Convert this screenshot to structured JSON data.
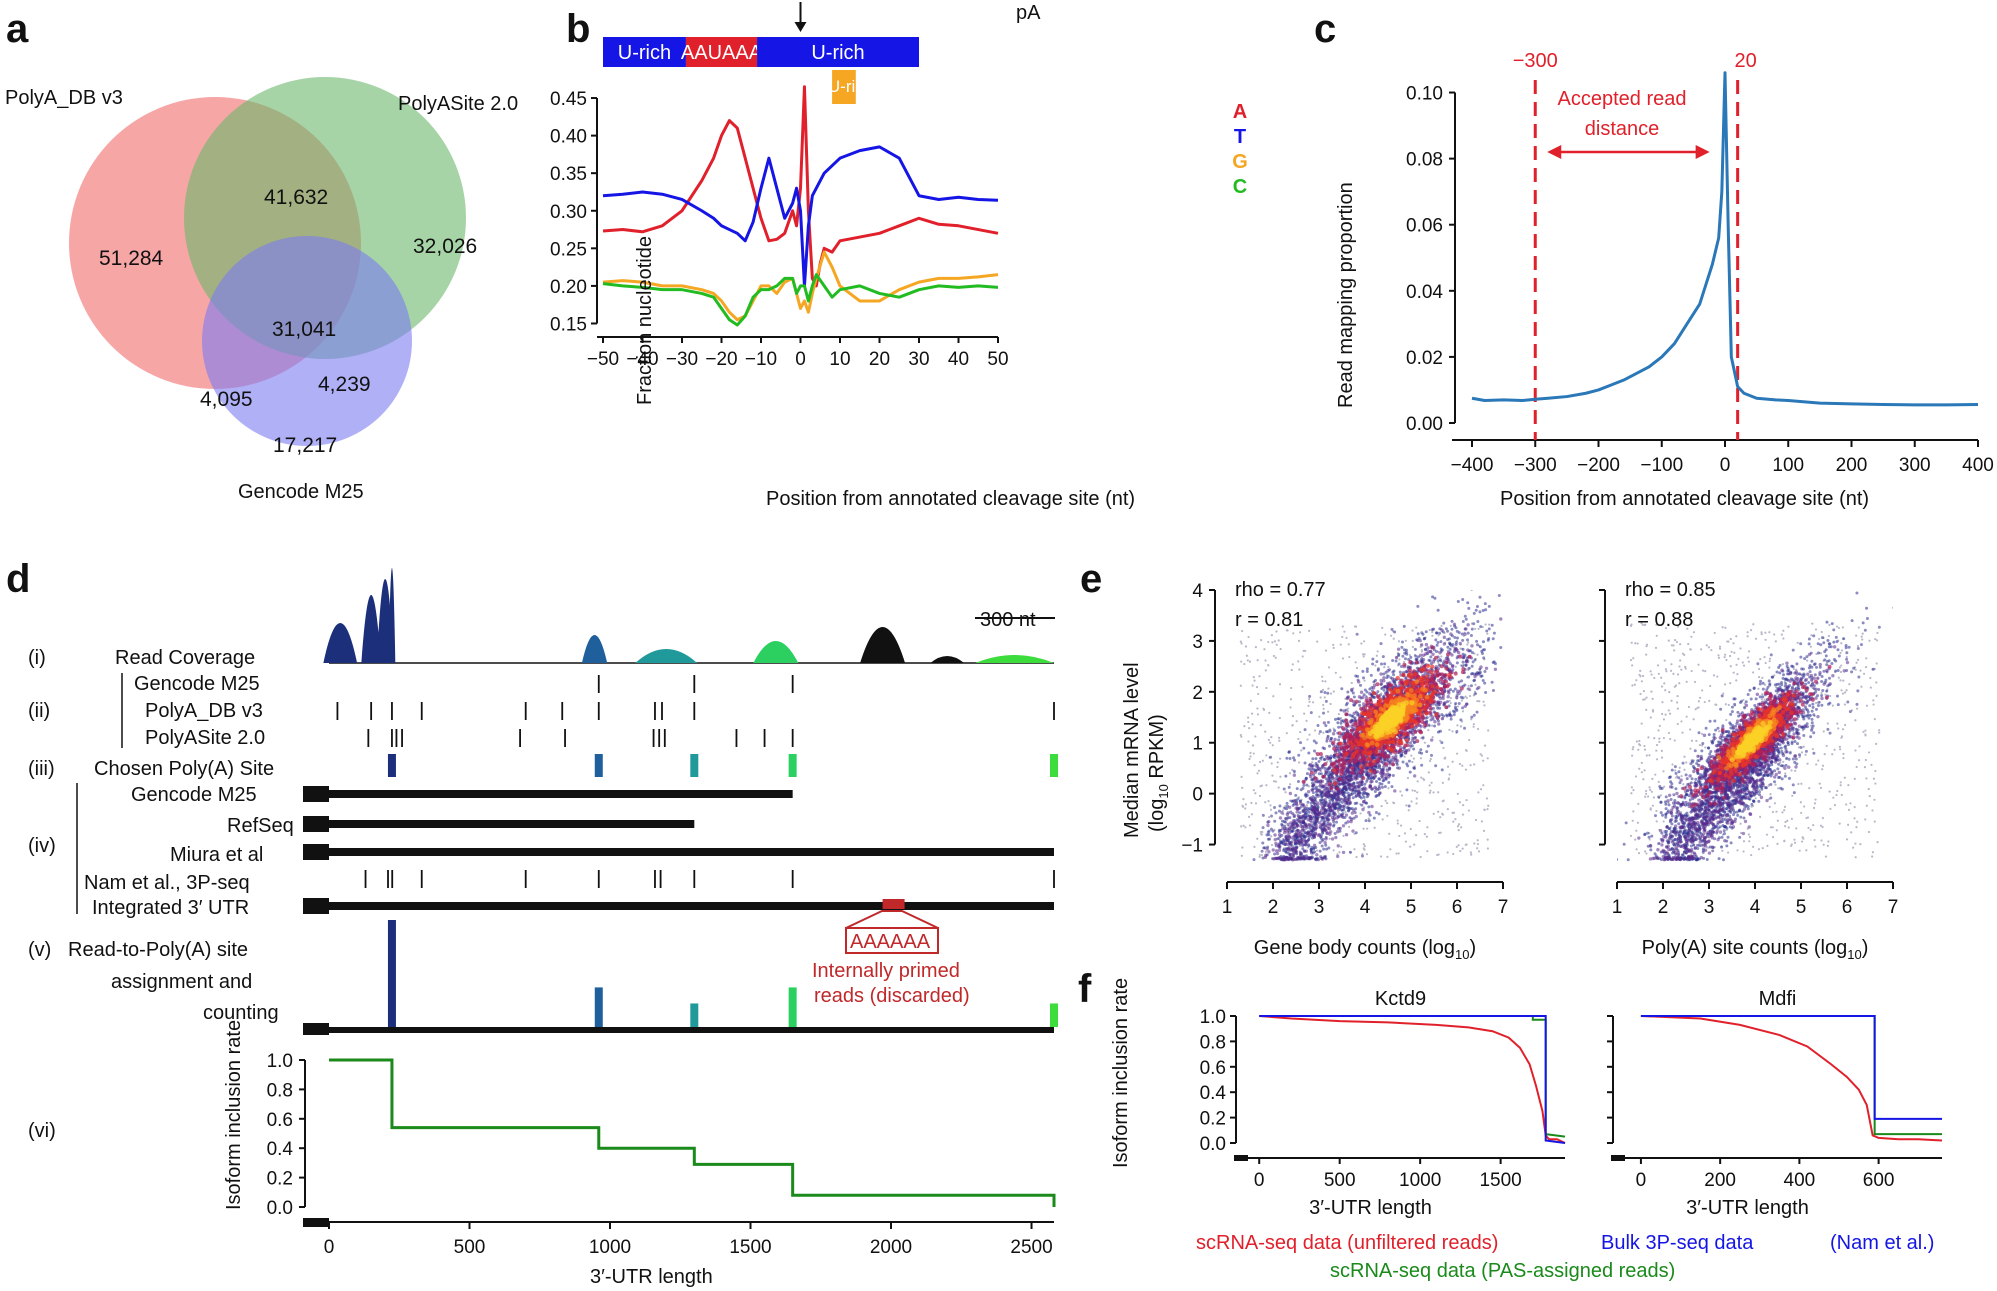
{
  "panel_labels": [
    "a",
    "b",
    "c",
    "d",
    "e",
    "f"
  ],
  "chart_data": [
    {
      "panel": "a",
      "type": "venn",
      "sets": [
        {
          "name": "PolyA_DB v3",
          "color": "#f26b6b"
        },
        {
          "name": "PolyASite 2.0",
          "color": "#6bb86b"
        },
        {
          "name": "Gencode M25",
          "color": "#7b7bf2"
        }
      ],
      "regions": [
        {
          "label": "51,284",
          "sets": [
            "PolyA_DB v3"
          ]
        },
        {
          "label": "32,026",
          "sets": [
            "PolyASite 2.0"
          ]
        },
        {
          "label": "17,217",
          "sets": [
            "Gencode M25"
          ]
        },
        {
          "label": "41,632",
          "sets": [
            "PolyA_DB v3",
            "PolyASite 2.0"
          ]
        },
        {
          "label": "4,095",
          "sets": [
            "PolyA_DB v3",
            "Gencode M25"
          ]
        },
        {
          "label": "4,239",
          "sets": [
            "PolyASite 2.0",
            "Gencode M25"
          ]
        },
        {
          "label": "31,041",
          "sets": [
            "PolyA_DB v3",
            "PolyASite 2.0",
            "Gencode M25"
          ]
        }
      ]
    },
    {
      "panel": "b",
      "type": "line",
      "xlabel": "Position from annotated cleavage site (nt)",
      "ylabel": "Fraction nucleotide",
      "xlim": [
        -50,
        50
      ],
      "ylim": [
        0.14,
        0.47
      ],
      "xticks": [
        -50,
        -40,
        -30,
        -20,
        -10,
        0,
        10,
        20,
        30,
        40,
        50
      ],
      "yticks": [
        "0.15",
        "0.20",
        "0.25",
        "0.30",
        "0.35",
        "0.40",
        "0.45"
      ],
      "top_annotation": {
        "marker": "pA",
        "segments": [
          {
            "label": "U-rich",
            "from": -50,
            "to": -29,
            "color": "#1515e6"
          },
          {
            "label": "AAUAAA",
            "from": -29,
            "to": -11,
            "color": "#e0202a"
          },
          {
            "label": "U-rich",
            "from": -11,
            "to": 30,
            "color": "#1515e6"
          }
        ],
        "box": {
          "label": "GU-rich",
          "from": 8,
          "to": 14,
          "color": "#f5a623"
        }
      },
      "series": [
        {
          "name": "A",
          "color": "#e0202a",
          "x": [
            -50,
            -45,
            -40,
            -35,
            -30,
            -25,
            -22,
            -20,
            -18,
            -16,
            -14,
            -12,
            -10,
            -8,
            -6,
            -4,
            -2,
            -1,
            0,
            1,
            2,
            3,
            4,
            5,
            6,
            8,
            10,
            15,
            20,
            25,
            30,
            35,
            40,
            45,
            50
          ],
          "y": [
            0.273,
            0.275,
            0.272,
            0.28,
            0.3,
            0.34,
            0.37,
            0.4,
            0.42,
            0.41,
            0.37,
            0.33,
            0.29,
            0.26,
            0.262,
            0.27,
            0.3,
            0.28,
            0.33,
            0.465,
            0.3,
            0.21,
            0.2,
            0.23,
            0.25,
            0.245,
            0.26,
            0.265,
            0.27,
            0.28,
            0.29,
            0.282,
            0.28,
            0.275,
            0.27
          ]
        },
        {
          "name": "T",
          "color": "#1515e6",
          "x": [
            -50,
            -45,
            -40,
            -35,
            -30,
            -25,
            -22,
            -20,
            -18,
            -16,
            -14,
            -12,
            -10,
            -8,
            -6,
            -4,
            -2,
            -1,
            0,
            1,
            2,
            3,
            4,
            6,
            8,
            10,
            15,
            20,
            25,
            30,
            35,
            40,
            45,
            50
          ],
          "y": [
            0.32,
            0.322,
            0.325,
            0.322,
            0.315,
            0.3,
            0.29,
            0.28,
            0.275,
            0.27,
            0.26,
            0.285,
            0.33,
            0.37,
            0.33,
            0.29,
            0.31,
            0.33,
            0.3,
            0.2,
            0.28,
            0.32,
            0.33,
            0.35,
            0.36,
            0.37,
            0.38,
            0.385,
            0.37,
            0.32,
            0.315,
            0.318,
            0.315,
            0.314
          ]
        },
        {
          "name": "G",
          "color": "#f5a623",
          "x": [
            -50,
            -45,
            -40,
            -35,
            -30,
            -25,
            -22,
            -20,
            -18,
            -16,
            -14,
            -12,
            -10,
            -8,
            -6,
            -4,
            -2,
            -1,
            0,
            1,
            2,
            3,
            4,
            6,
            8,
            10,
            15,
            20,
            25,
            30,
            35,
            40,
            45,
            50
          ],
          "y": [
            0.205,
            0.207,
            0.205,
            0.2,
            0.2,
            0.195,
            0.19,
            0.18,
            0.165,
            0.155,
            0.16,
            0.18,
            0.2,
            0.2,
            0.19,
            0.205,
            0.21,
            0.19,
            0.17,
            0.18,
            0.165,
            0.19,
            0.21,
            0.245,
            0.225,
            0.2,
            0.18,
            0.18,
            0.195,
            0.205,
            0.21,
            0.21,
            0.212,
            0.215
          ]
        },
        {
          "name": "C",
          "color": "#22bb22",
          "x": [
            -50,
            -45,
            -40,
            -35,
            -30,
            -25,
            -22,
            -20,
            -18,
            -16,
            -14,
            -12,
            -10,
            -8,
            -6,
            -4,
            -2,
            -1,
            0,
            1,
            2,
            3,
            4,
            6,
            8,
            10,
            15,
            20,
            25,
            30,
            35,
            40,
            45,
            50
          ],
          "y": [
            0.203,
            0.2,
            0.198,
            0.195,
            0.195,
            0.19,
            0.185,
            0.17,
            0.155,
            0.148,
            0.16,
            0.185,
            0.195,
            0.195,
            0.2,
            0.21,
            0.21,
            0.19,
            0.2,
            0.2,
            0.18,
            0.2,
            0.215,
            0.2,
            0.185,
            0.195,
            0.2,
            0.19,
            0.185,
            0.195,
            0.2,
            0.198,
            0.2,
            0.198
          ]
        }
      ]
    },
    {
      "panel": "c",
      "type": "line",
      "xlabel": "Position from annotated cleavage site (nt)",
      "ylabel": "Read mapping proportion",
      "xlim": [
        -400,
        400
      ],
      "ylim": [
        0,
        0.105
      ],
      "xticks": [
        "−400",
        "−300",
        "−200",
        "−100",
        "0",
        "100",
        "200",
        "300",
        "400"
      ],
      "yticks": [
        "0.00",
        "0.02",
        "0.04",
        "0.06",
        "0.08",
        "0.10"
      ],
      "annotations": {
        "left_line": -300,
        "right_line": 20,
        "left_label": "−300",
        "right_label": "20",
        "text_line1": "Accepted read",
        "text_line2": "distance",
        "color": "#e0202a"
      },
      "series": [
        {
          "name": "Read mapping",
          "color": "#2a78b8",
          "x": [
            -400,
            -380,
            -350,
            -320,
            -300,
            -280,
            -250,
            -220,
            -200,
            -180,
            -160,
            -140,
            -120,
            -100,
            -80,
            -60,
            -40,
            -30,
            -20,
            -10,
            -5,
            0,
            5,
            10,
            20,
            30,
            50,
            80,
            100,
            150,
            200,
            250,
            300,
            350,
            400
          ],
          "y": [
            0.0075,
            0.0068,
            0.007,
            0.0068,
            0.0072,
            0.0075,
            0.008,
            0.009,
            0.01,
            0.0115,
            0.013,
            0.015,
            0.017,
            0.02,
            0.024,
            0.03,
            0.036,
            0.042,
            0.048,
            0.056,
            0.07,
            0.106,
            0.06,
            0.02,
            0.011,
            0.009,
            0.0075,
            0.007,
            0.0068,
            0.006,
            0.0058,
            0.0056,
            0.0055,
            0.0055,
            0.0056
          ]
        }
      ]
    },
    {
      "panel": "d",
      "type": "schematic",
      "scalebar": "300 nt",
      "rows": [
        {
          "id": "(i)",
          "label": "Read Coverage"
        },
        {
          "id": "(ii)",
          "labels": [
            "Gencode M25",
            "PolyA_DB v3",
            "PolyASite 2.0"
          ]
        },
        {
          "id": "(iii)",
          "label": "Chosen Poly(A) Site"
        },
        {
          "id": "(iv)",
          "labels": [
            "Gencode M25",
            "RefSeq",
            "Miura et al",
            "Nam et al., 3P-seq",
            "Integrated 3′ UTR"
          ]
        },
        {
          "id": "(v)",
          "labels": [
            "Read-to-Poly(A) site",
            "assignment and",
            "counting"
          ]
        },
        {
          "id": "(vi)",
          "label": ""
        }
      ],
      "sites": [
        224,
        960,
        1300,
        1650,
        2580
      ],
      "site_colors": [
        "#1c2f7a",
        "#1f5f9c",
        "#20999a",
        "#2bd060",
        "#3bdc3b"
      ],
      "counts": [
        1.0,
        0.37,
        0.22,
        0.37,
        0.22
      ],
      "internal_priming": {
        "motif": "AAAAAA",
        "label_line1": "Internally primed",
        "label_line2": "reads (discarded)",
        "color": "#c0282a"
      },
      "step": {
        "xlabel": "3′-UTR length",
        "ylabel": "Isoform inclusion rate",
        "xlim": [
          -60,
          2600
        ],
        "ylim": [
          0,
          1
        ],
        "xticks": [
          0,
          500,
          1000,
          1500,
          2000,
          2500
        ],
        "yticks": [
          "0.0",
          "0.2",
          "0.4",
          "0.6",
          "0.8",
          "1.0"
        ],
        "x": [
          0,
          224,
          960,
          1300,
          1650,
          2580
        ],
        "y": [
          1.0,
          0.54,
          0.4,
          0.29,
          0.08,
          0.0
        ]
      }
    },
    {
      "panel": "e",
      "type": "scatter",
      "ylabel_line1": "Median mRNA level",
      "ylabel_line2": "(log",
      "ylabel_sub": "10",
      "ylabel_end": " RPKM)",
      "ylim": [
        -1.5,
        4
      ],
      "yticks": [
        "−1",
        "0",
        "1",
        "2",
        "3",
        "4"
      ],
      "plots": [
        {
          "xlabel": "Gene body counts (log",
          "xlabel_sub": "10",
          "xlabel_end": ")",
          "xlim": [
            1,
            7
          ],
          "xticks": [
            "1",
            "2",
            "3",
            "4",
            "5",
            "6",
            "7"
          ],
          "stat1": "rho = 0.77",
          "stat2": "r = 0.81",
          "center": [
            4.6,
            1.5
          ],
          "spread": [
            0.75,
            0.65
          ],
          "corr": 0.75
        },
        {
          "xlabel": "Poly(A) site counts (log",
          "xlabel_sub": "10",
          "xlabel_end": ")",
          "xlim": [
            1,
            7
          ],
          "xticks": [
            "1",
            "2",
            "3",
            "4",
            "5",
            "6",
            "7"
          ],
          "stat1": "rho = 0.85",
          "stat2": "r = 0.88",
          "center": [
            3.95,
            1.05
          ],
          "spread": [
            0.65,
            0.6
          ],
          "corr": 0.85
        }
      ]
    },
    {
      "panel": "f",
      "type": "line",
      "ylabel": "Isoform inclusion rate",
      "yticks": [
        "0.0",
        "0.2",
        "0.4",
        "0.6",
        "0.8",
        "1.0"
      ],
      "legend": [
        {
          "name": "scRNA-seq data (unfiltered reads)",
          "color": "#e0202a"
        },
        {
          "name": "Bulk 3P-seq data",
          "color": "#1515e6"
        },
        {
          "name": "(Nam et al.)",
          "color": "#1515e6"
        },
        {
          "name": "scRNA-seq data (PAS-assigned reads)",
          "color": "#1a8a1a"
        }
      ],
      "plots": [
        {
          "title": "Kctd9",
          "xlabel": "3′-UTR length",
          "xlim": [
            -20,
            1900
          ],
          "xticks": [
            0,
            500,
            1000,
            1500
          ],
          "red_x": [
            0,
            200,
            500,
            800,
            1100,
            1300,
            1450,
            1550,
            1620,
            1680,
            1720,
            1760,
            1780,
            1800,
            1850,
            1900
          ],
          "red_y": [
            1.0,
            0.98,
            0.96,
            0.95,
            0.93,
            0.91,
            0.88,
            0.83,
            0.75,
            0.62,
            0.45,
            0.25,
            0.06,
            0.03,
            0.03,
            0.0
          ],
          "blue_x": [
            0,
            1780,
            1780,
            1900
          ],
          "blue_y": [
            1.0,
            1.0,
            0.02,
            0.0
          ],
          "green_x": [
            0,
            1700,
            1700,
            1780,
            1780,
            1900
          ],
          "green_y": [
            1.0,
            1.0,
            0.97,
            0.97,
            0.07,
            0.05
          ]
        },
        {
          "title": "Mdfi",
          "xlabel": "3′-UTR length",
          "xlim": [
            -20,
            760
          ],
          "xticks": [
            0,
            200,
            400,
            600
          ],
          "red_x": [
            0,
            150,
            250,
            350,
            420,
            480,
            520,
            550,
            570,
            585,
            600,
            650,
            700,
            760
          ],
          "red_y": [
            1.0,
            0.98,
            0.93,
            0.85,
            0.76,
            0.62,
            0.52,
            0.42,
            0.3,
            0.06,
            0.04,
            0.03,
            0.03,
            0.02
          ],
          "blue_x": [
            0,
            590,
            590,
            760
          ],
          "blue_y": [
            1.0,
            1.0,
            0.19,
            0.19
          ],
          "green_x": [
            0,
            590,
            590,
            760
          ],
          "green_y": [
            1.0,
            1.0,
            0.07,
            0.07
          ]
        }
      ]
    }
  ]
}
